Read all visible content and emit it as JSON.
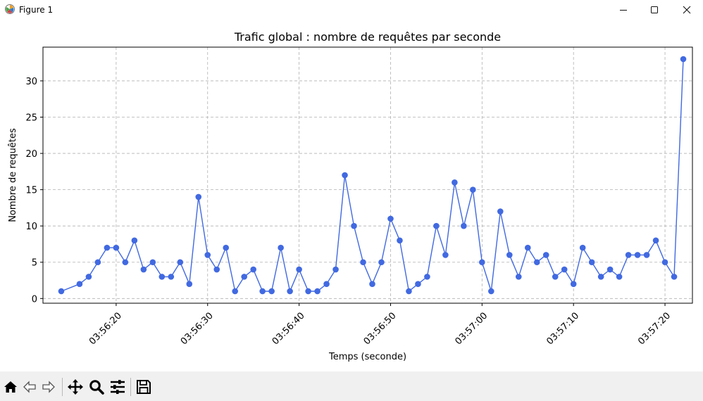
{
  "window": {
    "title": "Figure 1"
  },
  "chart_data": {
    "type": "line",
    "title": "Trafic global : nombre de requêtes par seconde",
    "xlabel": "Temps (seconde)",
    "ylabel": "Nombre de requêtes",
    "x_tick_labels": [
      "03:56:20",
      "03:56:30",
      "03:56:40",
      "03:56:50",
      "03:57:00",
      "03:57:10",
      "03:57:20"
    ],
    "y_ticks": [
      0,
      5,
      10,
      15,
      20,
      25,
      30
    ],
    "ylim": [
      -0.65,
      34.65
    ],
    "xlim": [
      "03:56:12",
      "03:57:23"
    ],
    "grid": true,
    "series": [
      {
        "color": "#4169e1",
        "marker": "circle",
        "points": [
          [
            "03:56:14",
            1
          ],
          [
            "03:56:16",
            2
          ],
          [
            "03:56:17",
            3
          ],
          [
            "03:56:18",
            5
          ],
          [
            "03:56:19",
            7
          ],
          [
            "03:56:20",
            7
          ],
          [
            "03:56:21",
            5
          ],
          [
            "03:56:22",
            8
          ],
          [
            "03:56:23",
            4
          ],
          [
            "03:56:24",
            5
          ],
          [
            "03:56:25",
            3
          ],
          [
            "03:56:26",
            3
          ],
          [
            "03:56:27",
            5
          ],
          [
            "03:56:28",
            2
          ],
          [
            "03:56:29",
            14
          ],
          [
            "03:56:30",
            6
          ],
          [
            "03:56:31",
            4
          ],
          [
            "03:56:32",
            7
          ],
          [
            "03:56:33",
            1
          ],
          [
            "03:56:34",
            3
          ],
          [
            "03:56:35",
            4
          ],
          [
            "03:56:36",
            1
          ],
          [
            "03:56:37",
            1
          ],
          [
            "03:56:38",
            7
          ],
          [
            "03:56:39",
            1
          ],
          [
            "03:56:40",
            4
          ],
          [
            "03:56:41",
            1
          ],
          [
            "03:56:42",
            1
          ],
          [
            "03:56:43",
            2
          ],
          [
            "03:56:44",
            4
          ],
          [
            "03:56:45",
            17
          ],
          [
            "03:56:46",
            10
          ],
          [
            "03:56:47",
            5
          ],
          [
            "03:56:48",
            2
          ],
          [
            "03:56:49",
            5
          ],
          [
            "03:56:50",
            11
          ],
          [
            "03:56:51",
            8
          ],
          [
            "03:56:52",
            1
          ],
          [
            "03:56:53",
            2
          ],
          [
            "03:56:54",
            3
          ],
          [
            "03:56:55",
            10
          ],
          [
            "03:56:56",
            6
          ],
          [
            "03:56:57",
            16
          ],
          [
            "03:56:58",
            10
          ],
          [
            "03:56:59",
            15
          ],
          [
            "03:57:00",
            5
          ],
          [
            "03:57:01",
            1
          ],
          [
            "03:57:02",
            12
          ],
          [
            "03:57:03",
            6
          ],
          [
            "03:57:04",
            3
          ],
          [
            "03:57:05",
            7
          ],
          [
            "03:57:06",
            5
          ],
          [
            "03:57:07",
            6
          ],
          [
            "03:57:08",
            3
          ],
          [
            "03:57:09",
            4
          ],
          [
            "03:57:10",
            2
          ],
          [
            "03:57:11",
            7
          ],
          [
            "03:57:12",
            5
          ],
          [
            "03:57:13",
            3
          ],
          [
            "03:57:14",
            4
          ],
          [
            "03:57:15",
            3
          ],
          [
            "03:57:16",
            6
          ],
          [
            "03:57:17",
            6
          ],
          [
            "03:57:18",
            6
          ],
          [
            "03:57:19",
            8
          ],
          [
            "03:57:20",
            5
          ],
          [
            "03:57:21",
            3
          ],
          [
            "03:57:22",
            33
          ]
        ]
      }
    ]
  },
  "toolbar": {
    "tools": [
      {
        "name": "home-icon"
      },
      {
        "name": "back-icon"
      },
      {
        "name": "forward-icon"
      },
      {
        "name": "pan-icon"
      },
      {
        "name": "zoom-icon"
      },
      {
        "name": "configure-subplots-icon"
      },
      {
        "name": "save-icon"
      }
    ]
  }
}
